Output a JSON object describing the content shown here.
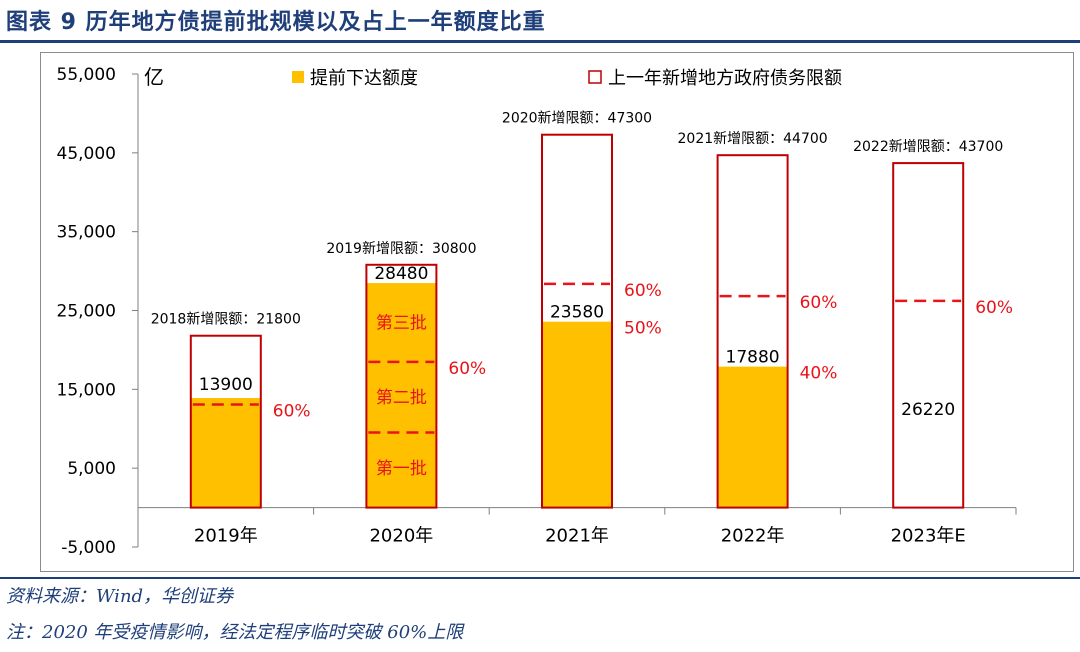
{
  "title": "图表 9  历年地方债提前批规模以及占上一年额度比重",
  "source": "资料来源：Wind，华创证券",
  "note": "注：2020 年受疫情影响，经法定程序临时突破 60%上限",
  "colors": {
    "fill": "#FFC000",
    "outline": "#C00000",
    "dash": "#E8141A",
    "annotation": "#E8141A",
    "title": "#1F3F7A"
  },
  "chart_data": {
    "type": "bar",
    "unit_label": "亿",
    "ylim": [
      -5000,
      55000
    ],
    "yticks": [
      -5000,
      5000,
      15000,
      25000,
      35000,
      45000,
      55000
    ],
    "ytick_labels": [
      "-5,000",
      "5,000",
      "15,000",
      "25,000",
      "35,000",
      "45,000",
      "55,000"
    ],
    "categories": [
      "2019年",
      "2020年",
      "2021年",
      "2022年",
      "2023年E"
    ],
    "legend": [
      {
        "name": "提前下达额度",
        "style": "filled"
      },
      {
        "name": "上一年新增地方政府债务限额",
        "style": "outline"
      }
    ],
    "series": [
      {
        "name": "提前下达额度",
        "values": [
          13900,
          28480,
          23580,
          17880,
          0
        ]
      },
      {
        "name": "上一年新增地方政府债务限额",
        "values": [
          21800,
          30800,
          47300,
          44700,
          43700
        ]
      }
    ],
    "limit_labels": [
      "2018新增限额：21800",
      "2019新增限额：30800",
      "2020新增限额：47300",
      "2021新增限额：44700",
      "2022新增限额：43700"
    ],
    "value_labels": [
      "13900",
      "28480",
      "23580",
      "17880",
      "26220"
    ],
    "value_label_positions": [
      13900,
      28480,
      23580,
      17880,
      26220
    ],
    "line_60_values": [
      13080,
      18480,
      28380,
      26820,
      26220
    ],
    "pct_labels": [
      {
        "cat": 0,
        "text": "60%",
        "y": 13080
      },
      {
        "cat": 1,
        "text": "60%",
        "y": 18480
      },
      {
        "cat": 2,
        "text": "60%",
        "y": 28380
      },
      {
        "cat": 2,
        "text": "50%",
        "y": 23580
      },
      {
        "cat": 3,
        "text": "60%",
        "y": 26820
      },
      {
        "cat": 3,
        "text": "40%",
        "y": 17880
      },
      {
        "cat": 4,
        "text": "60%",
        "y": 26220
      }
    ],
    "batch_dividers_2020": [
      9520,
      18480
    ],
    "batch_labels_2020": [
      {
        "text": "第三批",
        "y": 23500
      },
      {
        "text": "第二批",
        "y": 14000
      },
      {
        "text": "第一批",
        "y": 5000
      }
    ]
  }
}
